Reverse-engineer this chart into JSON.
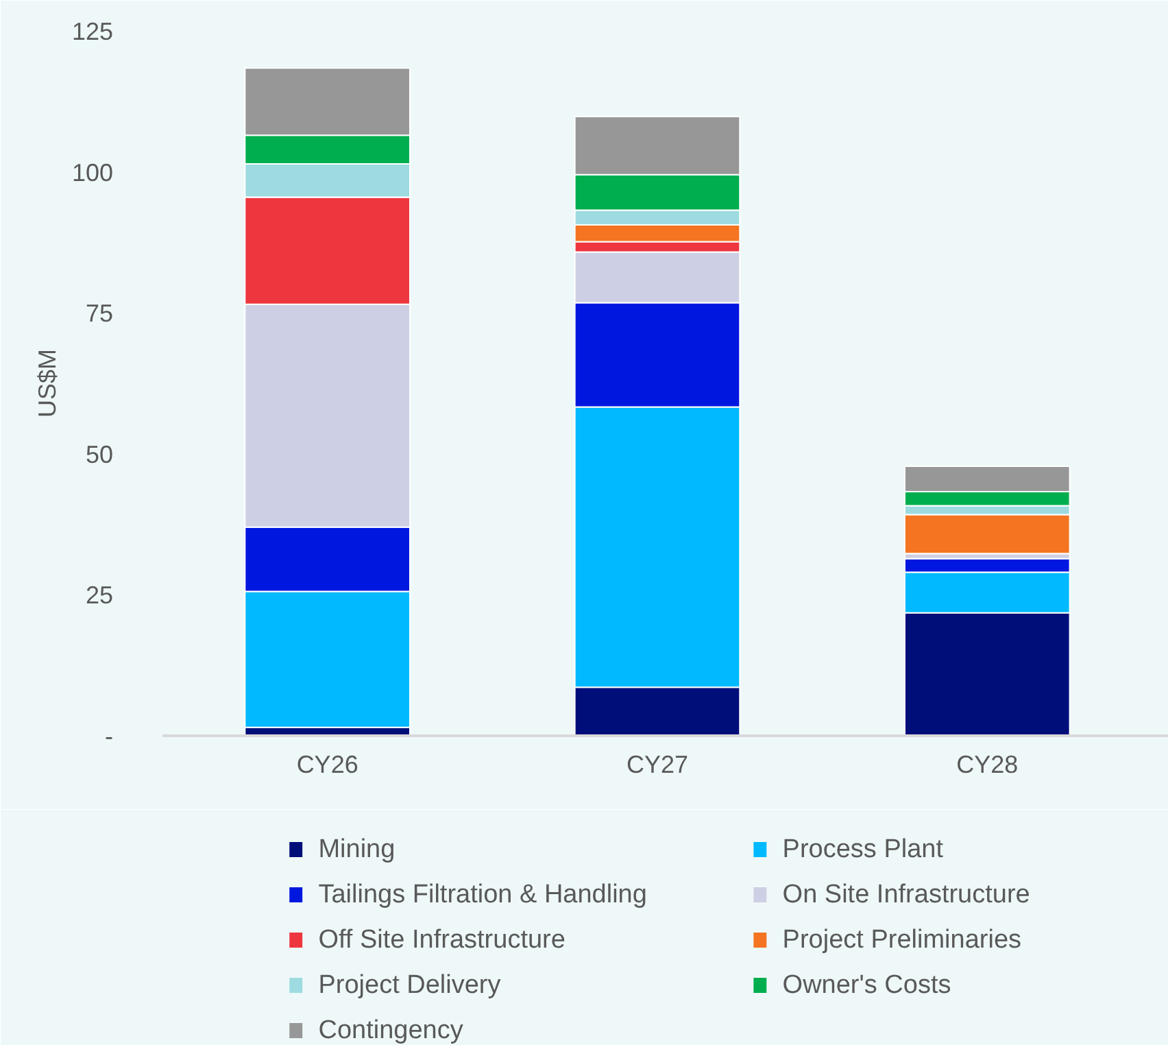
{
  "chart_data": {
    "type": "bar",
    "stacked": true,
    "ylabel": "US$M",
    "categories": [
      "CY26",
      "CY27",
      "CY28"
    ],
    "ylim": [
      0,
      125
    ],
    "yticks": [
      {
        "value": 0,
        "label": "-"
      },
      25,
      50,
      75,
      100,
      125
    ],
    "grid": false,
    "legend": "bottom",
    "series": [
      {
        "name": "Mining",
        "color": "#000e7a",
        "values": [
          1.5,
          8.6,
          21.8
        ]
      },
      {
        "name": "Process Plant",
        "color": "#00b9ff",
        "values": [
          24.1,
          49.7,
          7.2
        ]
      },
      {
        "name": "Tailings Filtration & Handling",
        "color": "#0017e0",
        "values": [
          11.4,
          18.5,
          2.4
        ]
      },
      {
        "name": "On Site Infrastructure",
        "color": "#cdd0e4",
        "values": [
          39.5,
          9.0,
          0.9
        ]
      },
      {
        "name": "Off Site Infrastructure",
        "color": "#ee363e",
        "values": [
          19.0,
          1.8,
          0
        ]
      },
      {
        "name": "Project Preliminaries",
        "color": "#f47421",
        "values": [
          0,
          3.0,
          6.9
        ]
      },
      {
        "name": "Project Delivery",
        "color": "#9ddbe0",
        "values": [
          5.9,
          2.6,
          1.6
        ]
      },
      {
        "name": "Owner's Costs",
        "color": "#00ae4f",
        "values": [
          5.1,
          6.3,
          2.5
        ]
      },
      {
        "name": "Contingency",
        "color": "#979797",
        "values": [
          11.9,
          10.3,
          4.5
        ]
      }
    ]
  }
}
